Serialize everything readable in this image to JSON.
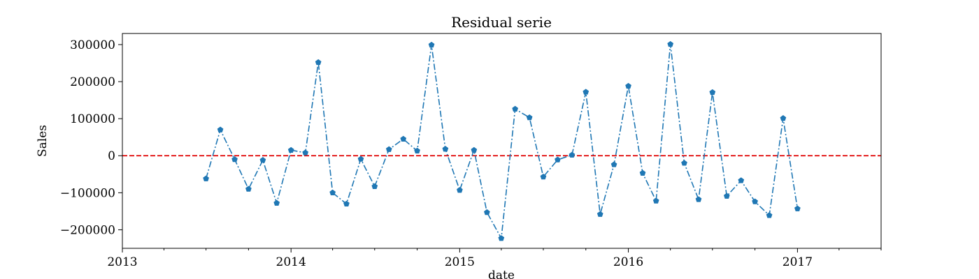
{
  "chart_data": {
    "type": "line",
    "title": "Residual serie",
    "xlabel": "date",
    "ylabel": "Sales",
    "xlim": [
      "2013-01-01",
      "2017-07-01"
    ],
    "ylim": [
      -250000,
      330000
    ],
    "grid": false,
    "x_ticks": [
      "2013",
      "2014",
      "2015",
      "2016",
      "2017"
    ],
    "y_ticks": [
      {
        "value": -200000,
        "label": "−200000"
      },
      {
        "value": -100000,
        "label": "−100000"
      },
      {
        "value": 0,
        "label": "0"
      },
      {
        "value": 100000,
        "label": "100000"
      },
      {
        "value": 200000,
        "label": "200000"
      },
      {
        "value": 300000,
        "label": "300000"
      }
    ],
    "reference_line": {
      "y": 0,
      "color": "#e00000",
      "style": "dashed"
    },
    "series": [
      {
        "color": "#1f77b4",
        "line_style": "dashdot",
        "marker": "pentagon",
        "x": [
          "2013-07-01",
          "2013-08-01",
          "2013-09-01",
          "2013-10-01",
          "2013-11-01",
          "2013-12-01",
          "2014-01-01",
          "2014-02-01",
          "2014-03-01",
          "2014-04-01",
          "2014-05-01",
          "2014-06-01",
          "2014-07-01",
          "2014-08-01",
          "2014-09-01",
          "2014-10-01",
          "2014-11-01",
          "2014-12-01",
          "2015-01-01",
          "2015-02-01",
          "2015-03-01",
          "2015-04-01",
          "2015-05-01",
          "2015-06-01",
          "2015-07-01",
          "2015-08-01",
          "2015-09-01",
          "2015-10-01",
          "2015-11-01",
          "2015-12-01",
          "2016-01-01",
          "2016-02-01",
          "2016-03-01",
          "2016-04-01",
          "2016-05-01",
          "2016-06-01",
          "2016-07-01",
          "2016-08-01",
          "2016-09-01",
          "2016-10-01",
          "2016-11-01",
          "2016-12-01",
          "2017-01-01"
        ],
        "values": [
          -62000,
          70000,
          -10000,
          -90000,
          -12000,
          -128000,
          15000,
          8000,
          252000,
          -100000,
          -130000,
          -9000,
          -83000,
          17000,
          45000,
          13000,
          299000,
          18000,
          -93000,
          15000,
          -153000,
          -223000,
          126000,
          103000,
          -57000,
          -11000,
          2000,
          172000,
          -158000,
          -24000,
          188000,
          -47000,
          -122000,
          301000,
          -20000,
          -118000,
          171000,
          -109000,
          -67000,
          -124000,
          -161000,
          101000,
          -143000
        ]
      }
    ]
  }
}
